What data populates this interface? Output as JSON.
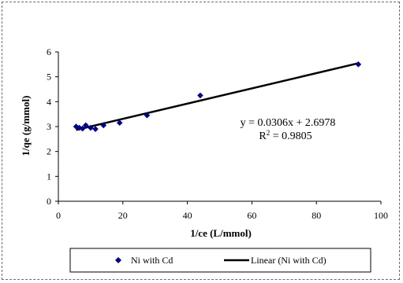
{
  "chart_data": {
    "type": "scatter",
    "xlabel": "1/ce (L/mmol)",
    "ylabel": "1/qe (g/mmol)",
    "xlim": [
      0,
      100
    ],
    "ylim": [
      0,
      6
    ],
    "x_ticks": [
      "0",
      "20",
      "40",
      "60",
      "80",
      "100"
    ],
    "y_ticks": [
      "0",
      "1",
      "2",
      "3",
      "4",
      "5",
      "6"
    ],
    "grid": false,
    "legend_position": "bottom",
    "series": [
      {
        "name": "Ni with Cd",
        "marker": "diamond",
        "color": "#00008B",
        "x": [
          5.5,
          6.5,
          7.5,
          8.5,
          10.0,
          11.5,
          14.0,
          19.0,
          27.5,
          44.0,
          93.0
        ],
        "y": [
          3.0,
          2.95,
          2.92,
          3.05,
          2.95,
          2.9,
          3.05,
          3.15,
          3.45,
          4.25,
          5.5
        ]
      },
      {
        "name": "Linear (Ni with Cd)",
        "type": "line",
        "color": "#000000",
        "slope": 0.0306,
        "intercept": 2.6978,
        "x_range": [
          5.5,
          93.0
        ]
      }
    ],
    "annotations": {
      "equation": "y = 0.0306x + 2.6978",
      "r2_prefix": "R",
      "r2_sup": "2",
      "r2_value": " = 0.9805"
    }
  }
}
